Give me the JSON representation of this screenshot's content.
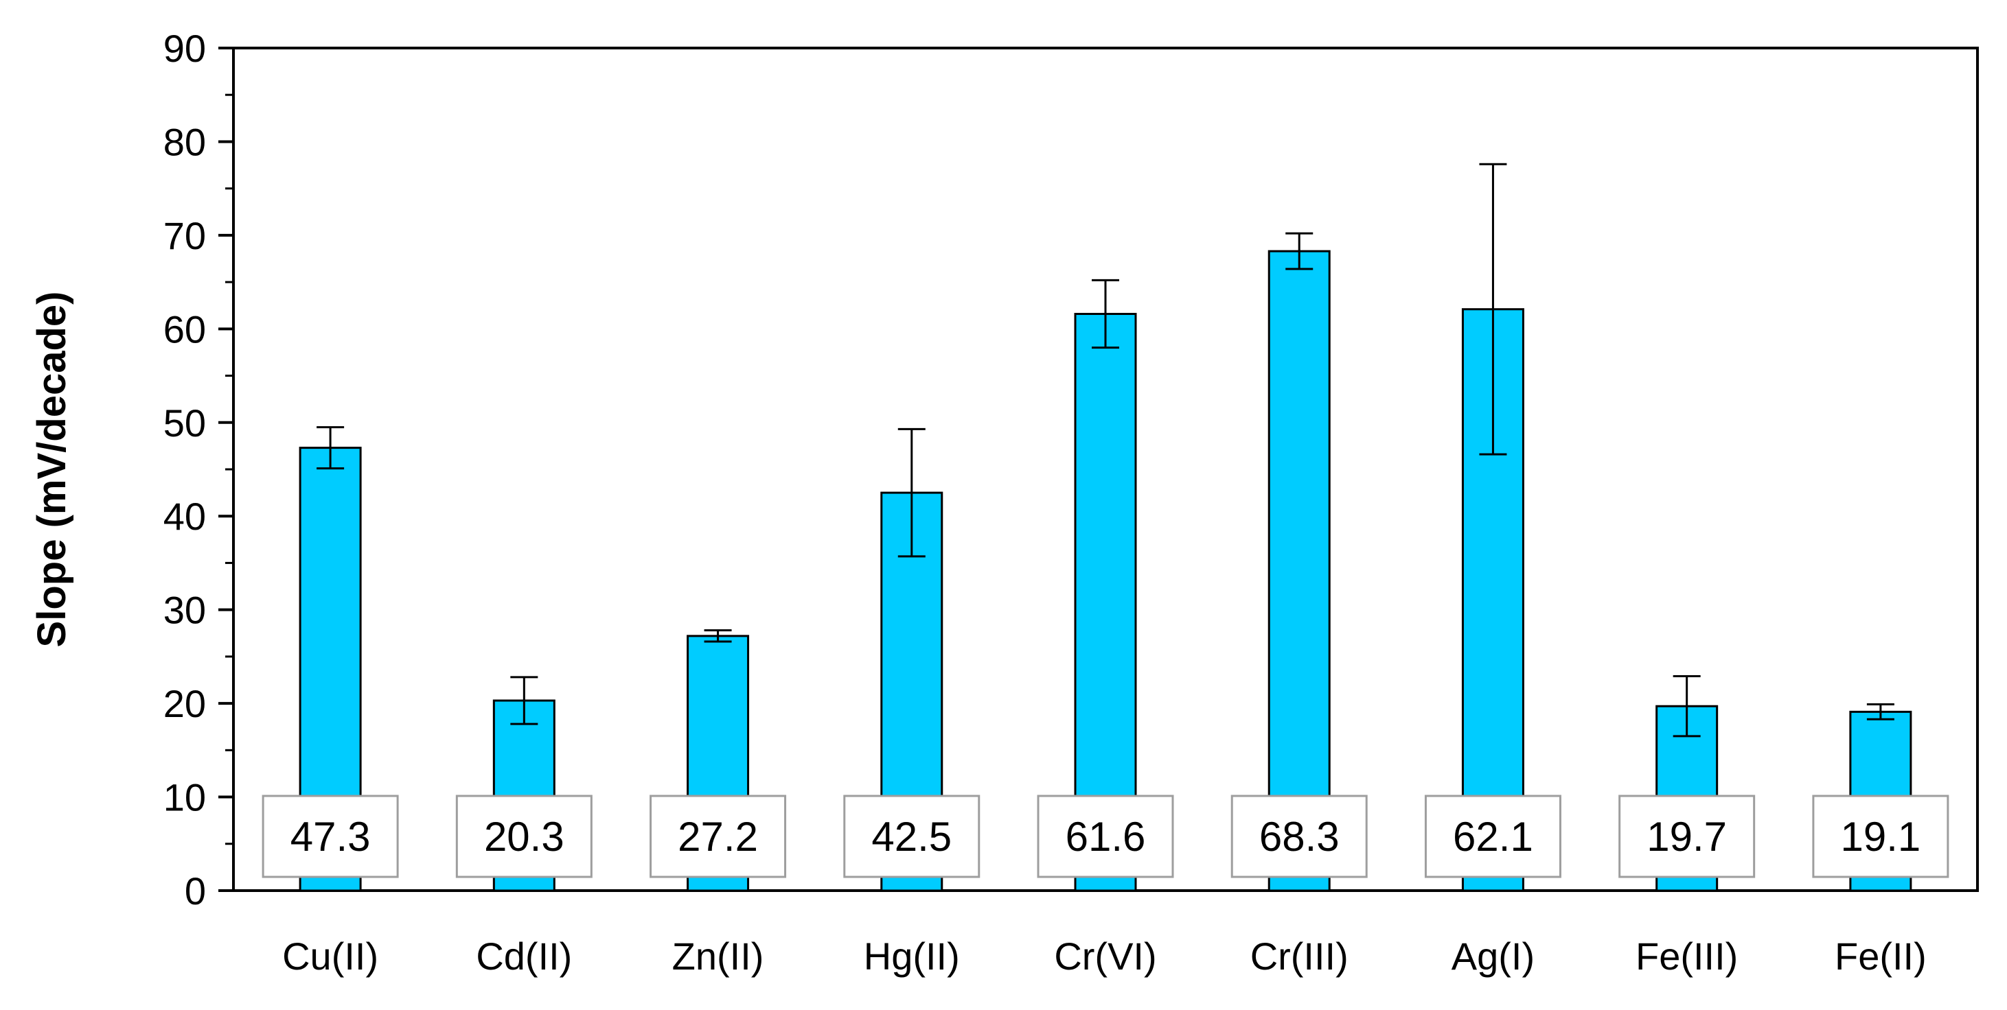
{
  "chart_data": {
    "type": "bar",
    "title": "",
    "xlabel": "",
    "ylabel": "Slope (mV/decade)",
    "ylim": [
      0,
      90
    ],
    "yticks": [
      0,
      10,
      20,
      30,
      40,
      50,
      60,
      70,
      80,
      90
    ],
    "categories": [
      "Cu(II)",
      "Cd(II)",
      "Zn(II)",
      "Hg(II)",
      "Cr(VI)",
      "Cr(III)",
      "Ag(I)",
      "Fe(III)",
      "Fe(II)"
    ],
    "values": [
      47.3,
      20.3,
      27.2,
      42.5,
      61.6,
      68.3,
      62.1,
      19.7,
      19.1
    ],
    "errors": [
      2.2,
      2.5,
      0.6,
      6.8,
      3.6,
      1.9,
      15.5,
      3.2,
      0.8
    ],
    "data_labels": [
      "47.3",
      "20.3",
      "27.2",
      "42.5",
      "61.6",
      "68.3",
      "62.1",
      "19.7",
      "19.1"
    ],
    "bar_color": "#00CCFF",
    "grid": false,
    "legend": "none"
  }
}
